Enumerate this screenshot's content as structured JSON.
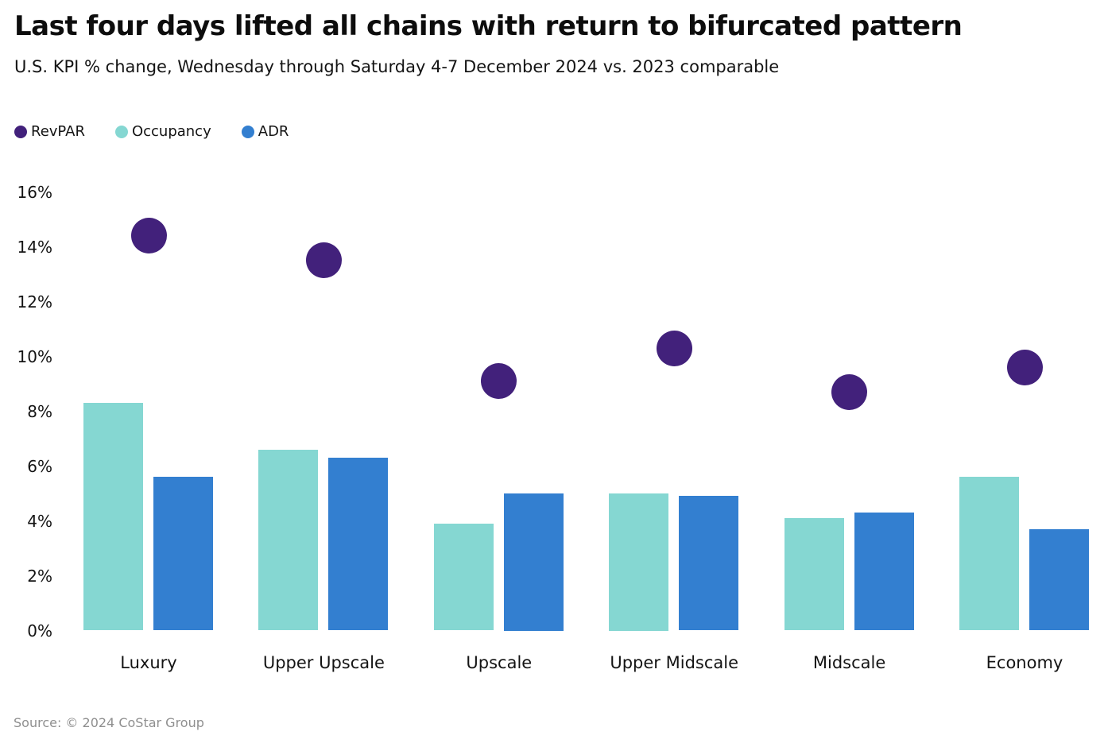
{
  "title": "Last four days lifted all chains with return to bifurcated pattern",
  "subtitle": "U.S. KPI % change, Wednesday through Saturday 4-7 December 2024 vs. 2023 comparable",
  "source": "Source: © 2024 CoStar Group",
  "colors": {
    "revpar": "#42217B",
    "occupancy": "#85D7D2",
    "adr": "#337FD0",
    "text": "#141414",
    "source_text": "#8F8F8F"
  },
  "legend": [
    {
      "label": "RevPAR",
      "color": "#42217B"
    },
    {
      "label": "Occupancy",
      "color": "#85D7D2"
    },
    {
      "label": "ADR",
      "color": "#337FD0"
    }
  ],
  "chart_data": {
    "type": "bar",
    "note": "grouped bars for Occupancy and ADR with RevPAR shown as scatter dots",
    "categories": [
      "Luxury",
      "Upper Upscale",
      "Upscale",
      "Upper Midscale",
      "Midscale",
      "Economy"
    ],
    "series": [
      {
        "name": "RevPAR",
        "render": "scatter",
        "color": "#42217B",
        "values": [
          14.4,
          13.5,
          9.1,
          10.3,
          8.7,
          9.6
        ]
      },
      {
        "name": "Occupancy",
        "render": "bar",
        "color": "#85D7D2",
        "values": [
          8.3,
          6.6,
          3.9,
          5.0,
          4.1,
          5.6
        ]
      },
      {
        "name": "ADR",
        "render": "bar",
        "color": "#337FD0",
        "values": [
          5.6,
          6.3,
          5.0,
          4.9,
          4.3,
          3.7
        ]
      }
    ],
    "title": "Last four days lifted all chains with return to bifurcated pattern",
    "xlabel": "",
    "ylabel": "",
    "ylim": [
      0,
      16
    ],
    "y_tick_labels": [
      "0%",
      "2%",
      "4%",
      "6%",
      "8%",
      "10%",
      "12%",
      "14%",
      "16%"
    ],
    "grid": false,
    "legend_position": "top-left"
  }
}
